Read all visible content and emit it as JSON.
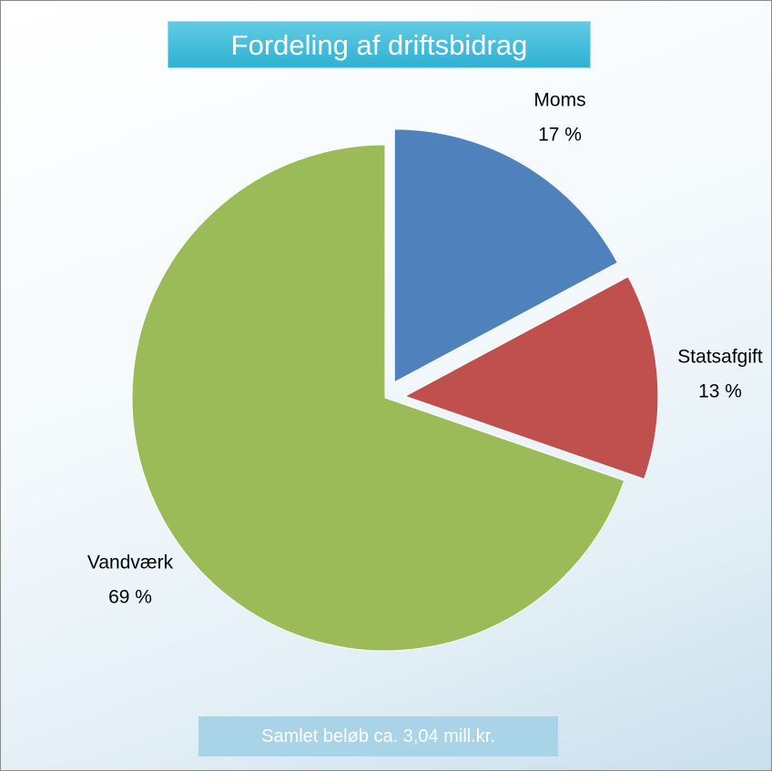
{
  "chart_data": {
    "type": "pie",
    "title": "Fordeling af driftsbidrag",
    "categories": [
      "Moms",
      "Statsafgift",
      "Vandværk"
    ],
    "values": [
      17,
      13,
      69
    ],
    "value_labels": [
      "17 %",
      "13 %",
      "69 %"
    ],
    "colors": [
      "#4f81bd",
      "#c0504d",
      "#9bbb59"
    ],
    "annotation": "Samlet beløb ca. 3,04 mill.kr."
  }
}
